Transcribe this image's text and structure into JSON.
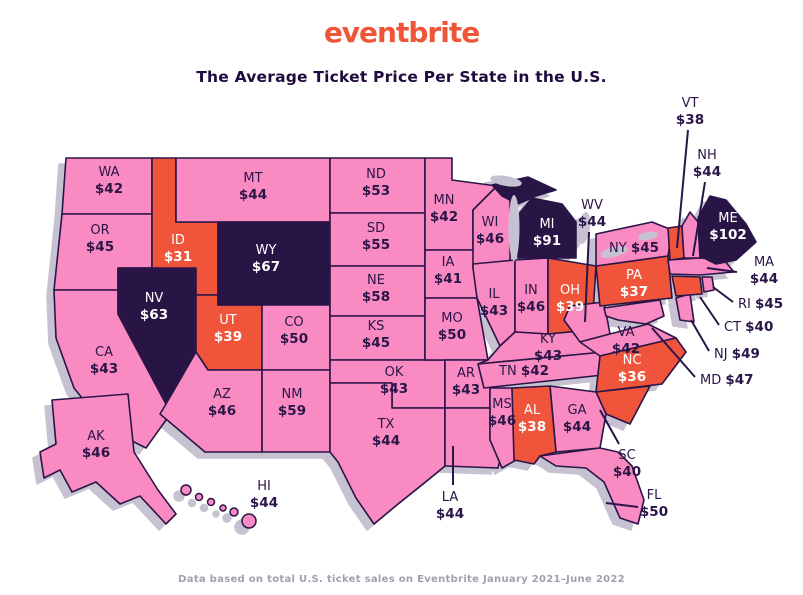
{
  "header": {
    "logo": "eventbrite",
    "title": "The Average Ticket Price Per State in the U.S."
  },
  "footer": {
    "caption": "Data based on total U.S. ticket sales on Eventbrite January 2021–June 2022"
  },
  "palette": {
    "logo_orange": "#F05537",
    "title_navy": "#1E0A3C",
    "pink": "#F98BC2",
    "orange": "#F0543B",
    "navy": "#281545",
    "stroke": "#2A1548",
    "label_dark": "#2A1548",
    "label_light": "#FFFFFF",
    "shadow_gray": "#C6C2D2",
    "caption_gray": "#A29FAC"
  },
  "chart_data": {
    "type": "choropleth_map",
    "title": "The Average Ticket Price Per State in the U.S.",
    "unit": "USD",
    "source_note": "Data based on total U.S. ticket sales on Eventbrite January 2021–June 2022",
    "states": [
      {
        "abbr": "WA",
        "value": 42,
        "tier": "pink"
      },
      {
        "abbr": "OR",
        "value": 45,
        "tier": "pink"
      },
      {
        "abbr": "CA",
        "value": 43,
        "tier": "pink"
      },
      {
        "abbr": "NV",
        "value": 63,
        "tier": "navy"
      },
      {
        "abbr": "ID",
        "value": 31,
        "tier": "orange"
      },
      {
        "abbr": "UT",
        "value": 39,
        "tier": "orange"
      },
      {
        "abbr": "AZ",
        "value": 46,
        "tier": "pink"
      },
      {
        "abbr": "MT",
        "value": 44,
        "tier": "pink"
      },
      {
        "abbr": "WY",
        "value": 67,
        "tier": "navy"
      },
      {
        "abbr": "CO",
        "value": 50,
        "tier": "pink"
      },
      {
        "abbr": "NM",
        "value": 59,
        "tier": "pink"
      },
      {
        "abbr": "ND",
        "value": 53,
        "tier": "pink"
      },
      {
        "abbr": "SD",
        "value": 55,
        "tier": "pink"
      },
      {
        "abbr": "NE",
        "value": 58,
        "tier": "pink"
      },
      {
        "abbr": "KS",
        "value": 45,
        "tier": "pink"
      },
      {
        "abbr": "OK",
        "value": 43,
        "tier": "pink"
      },
      {
        "abbr": "TX",
        "value": 44,
        "tier": "pink"
      },
      {
        "abbr": "MN",
        "value": 42,
        "tier": "pink"
      },
      {
        "abbr": "IA",
        "value": 41,
        "tier": "pink"
      },
      {
        "abbr": "MO",
        "value": 50,
        "tier": "pink"
      },
      {
        "abbr": "AR",
        "value": 43,
        "tier": "pink"
      },
      {
        "abbr": "LA",
        "value": 44,
        "tier": "pink"
      },
      {
        "abbr": "MS",
        "value": 46,
        "tier": "pink"
      },
      {
        "abbr": "WI",
        "value": 46,
        "tier": "pink"
      },
      {
        "abbr": "IL",
        "value": 43,
        "tier": "pink"
      },
      {
        "abbr": "IN",
        "value": 46,
        "tier": "pink"
      },
      {
        "abbr": "MI",
        "value": 91,
        "tier": "navy"
      },
      {
        "abbr": "OH",
        "value": 39,
        "tier": "orange"
      },
      {
        "abbr": "KY",
        "value": 43,
        "tier": "pink"
      },
      {
        "abbr": "TN",
        "value": 42,
        "tier": "pink"
      },
      {
        "abbr": "WV",
        "value": 44,
        "tier": "pink"
      },
      {
        "abbr": "VA",
        "value": 42,
        "tier": "pink"
      },
      {
        "abbr": "NC",
        "value": 36,
        "tier": "orange"
      },
      {
        "abbr": "SC",
        "value": 40,
        "tier": "orange"
      },
      {
        "abbr": "GA",
        "value": 44,
        "tier": "pink"
      },
      {
        "abbr": "AL",
        "value": 38,
        "tier": "orange"
      },
      {
        "abbr": "FL",
        "value": 50,
        "tier": "pink"
      },
      {
        "abbr": "PA",
        "value": 37,
        "tier": "orange"
      },
      {
        "abbr": "NY",
        "value": 45,
        "tier": "pink"
      },
      {
        "abbr": "NJ",
        "value": 49,
        "tier": "pink"
      },
      {
        "abbr": "MD",
        "value": 47,
        "tier": "pink"
      },
      {
        "abbr": "CT",
        "value": 40,
        "tier": "orange"
      },
      {
        "abbr": "RI",
        "value": 45,
        "tier": "pink"
      },
      {
        "abbr": "MA",
        "value": 44,
        "tier": "pink"
      },
      {
        "abbr": "VT",
        "value": 38,
        "tier": "orange"
      },
      {
        "abbr": "NH",
        "value": 44,
        "tier": "pink"
      },
      {
        "abbr": "ME",
        "value": 102,
        "tier": "navy"
      },
      {
        "abbr": "AK",
        "value": 46,
        "tier": "pink"
      },
      {
        "abbr": "HI",
        "value": 44,
        "tier": "pink"
      }
    ]
  }
}
